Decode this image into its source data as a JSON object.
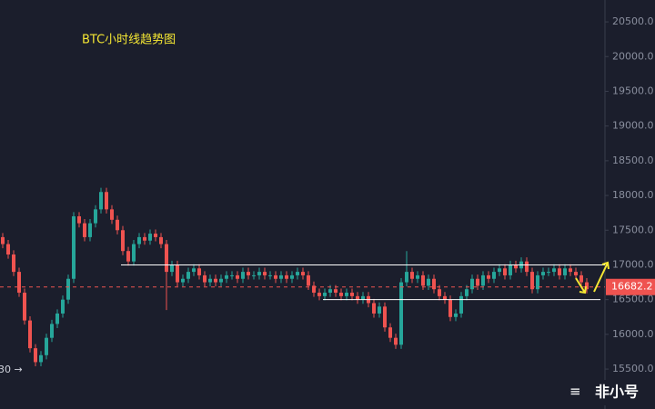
{
  "chart_data": {
    "type": "candlestick",
    "title": "BTC小时线趋势图",
    "open": [
      17400,
      17300,
      17150,
      16900,
      16600,
      16200,
      15800,
      15600,
      15700,
      15950,
      16150,
      16300,
      16500,
      16800,
      17700,
      17600,
      17400,
      17600,
      17800,
      18050,
      17800,
      17650,
      17500,
      17200,
      17050,
      17300,
      17400,
      17350,
      17450,
      17400,
      17300,
      16900,
      17000,
      16750,
      16800,
      16900,
      16950,
      16850,
      16750,
      16800,
      16750,
      16800,
      16850,
      16850,
      16800,
      16900,
      16850,
      16850,
      16900,
      16850,
      16850,
      16800,
      16850,
      16800,
      16850,
      16900,
      16850,
      16700,
      16600,
      16550,
      16600,
      16650,
      16600,
      16550,
      16600,
      16550,
      16500,
      16550,
      16450,
      16300,
      16400,
      16100,
      15950,
      15850,
      16750,
      16900,
      16800,
      16850,
      16700,
      16800,
      16650,
      16550,
      16500,
      16250,
      16300,
      16550,
      16650,
      16800,
      16700,
      16850,
      16800,
      16900,
      16950,
      16850,
      17000,
      16950,
      17050,
      16900,
      16650,
      16850,
      16900,
      16900,
      16950,
      16850,
      16950,
      16900,
      16850,
      16750
    ],
    "high": [
      17460,
      17360,
      17210,
      16960,
      16660,
      16260,
      15860,
      15760,
      16010,
      16210,
      16360,
      16560,
      16860,
      17760,
      17760,
      17660,
      17660,
      17860,
      18110,
      18110,
      17860,
      17710,
      17560,
      17260,
      17360,
      17460,
      17460,
      17510,
      17510,
      17460,
      17360,
      17060,
      17060,
      16860,
      16960,
      17010,
      17010,
      16910,
      16860,
      16860,
      16860,
      16910,
      16910,
      16910,
      16960,
      16960,
      16910,
      16960,
      16960,
      16910,
      16910,
      16910,
      16910,
      16910,
      16960,
      16960,
      16910,
      16760,
      16660,
      16660,
      16710,
      16710,
      16660,
      16660,
      16660,
      16610,
      16610,
      16610,
      16510,
      16460,
      16460,
      16160,
      16010,
      16810,
      17200,
      16960,
      16910,
      16910,
      16860,
      16860,
      16710,
      16610,
      16560,
      16360,
      16610,
      16710,
      16860,
      16860,
      16910,
      16910,
      16960,
      17010,
      17010,
      17060,
      17060,
      17110,
      17110,
      16960,
      16910,
      16960,
      16960,
      17010,
      17010,
      17010,
      17010,
      16960,
      16910,
      16810
    ],
    "low": [
      17240,
      17090,
      16840,
      16540,
      16140,
      15740,
      15540,
      15540,
      15640,
      15890,
      16090,
      16240,
      16440,
      16740,
      17540,
      17340,
      17340,
      17540,
      17740,
      17740,
      17590,
      17440,
      17140,
      16990,
      16990,
      17240,
      17290,
      17290,
      17340,
      17240,
      16350,
      16840,
      16690,
      16690,
      16740,
      16840,
      16790,
      16690,
      16690,
      16690,
      16690,
      16740,
      16790,
      16740,
      16740,
      16790,
      16790,
      16790,
      16790,
      16790,
      16740,
      16740,
      16740,
      16740,
      16790,
      16790,
      16640,
      16540,
      16490,
      16490,
      16540,
      16540,
      16490,
      16490,
      16490,
      16440,
      16440,
      16390,
      16240,
      16240,
      16040,
      15890,
      15790,
      15790,
      16690,
      16740,
      16740,
      16640,
      16640,
      16590,
      16490,
      16440,
      16190,
      16190,
      16240,
      16490,
      16590,
      16640,
      16640,
      16740,
      16740,
      16840,
      16790,
      16790,
      16890,
      16890,
      16840,
      16590,
      16590,
      16790,
      16840,
      16840,
      16790,
      16790,
      16840,
      16790,
      16690,
      16590
    ],
    "close": [
      17300,
      17150,
      16900,
      16600,
      16200,
      15800,
      15600,
      15700,
      15950,
      16150,
      16300,
      16500,
      16800,
      17700,
      17600,
      17400,
      17600,
      17800,
      18050,
      17800,
      17650,
      17500,
      17200,
      17050,
      17300,
      17400,
      17350,
      17450,
      17400,
      17300,
      16900,
      17000,
      16750,
      16800,
      16900,
      16950,
      16850,
      16750,
      16800,
      16750,
      16800,
      16850,
      16850,
      16800,
      16900,
      16850,
      16850,
      16900,
      16850,
      16850,
      16800,
      16850,
      16800,
      16850,
      16900,
      16850,
      16700,
      16600,
      16550,
      16600,
      16650,
      16600,
      16550,
      16600,
      16550,
      16500,
      16550,
      16450,
      16300,
      16400,
      16100,
      15950,
      15850,
      16750,
      16900,
      16800,
      16850,
      16700,
      16800,
      16650,
      16550,
      16500,
      16250,
      16300,
      16550,
      16650,
      16800,
      16700,
      16850,
      16800,
      16900,
      16950,
      16850,
      17000,
      16950,
      17050,
      16900,
      16650,
      16850,
      16900,
      16900,
      16950,
      16850,
      16950,
      16900,
      16850,
      16750,
      16650
    ],
    "up_color": "#26a69a",
    "down_color": "#ef5350",
    "ylim": [
      14925,
      20815
    ],
    "yticks": [
      {
        "value": 15500,
        "label": "15500.0"
      },
      {
        "value": 16000,
        "label": "16000.0"
      },
      {
        "value": 16500,
        "label": "16500.0"
      },
      {
        "value": 17000,
        "label": "17000.0"
      },
      {
        "value": 17500,
        "label": "17500.0"
      },
      {
        "value": 18000,
        "label": "18000.0"
      },
      {
        "value": 18500,
        "label": "18500.0"
      },
      {
        "value": 19000,
        "label": "19000.0"
      },
      {
        "value": 19500,
        "label": "19500.0"
      },
      {
        "value": 20000,
        "label": "20000.0"
      },
      {
        "value": 20500,
        "label": "20500.0"
      }
    ],
    "levels": [
      17000,
      16500
    ],
    "last_price": 16682.2,
    "low_label": "30 →"
  },
  "watermark": "非小号"
}
